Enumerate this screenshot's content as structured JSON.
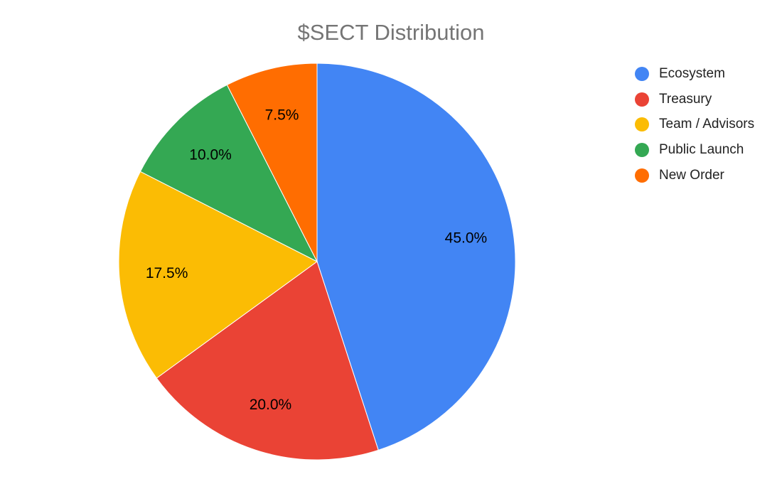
{
  "chart_data": {
    "type": "pie",
    "title": "$SECT Distribution",
    "legend_position": "right",
    "slices": [
      {
        "label": "Ecosystem",
        "value": 45.0,
        "display": "45.0%",
        "color": "#4285f4"
      },
      {
        "label": "Treasury",
        "value": 20.0,
        "display": "20.0%",
        "color": "#ea4335"
      },
      {
        "label": "Team / Advisors",
        "value": 17.5,
        "display": "17.5%",
        "color": "#fbbc04"
      },
      {
        "label": "Public Launch",
        "value": 10.0,
        "display": "10.0%",
        "color": "#34a853"
      },
      {
        "label": "New Order",
        "value": 7.5,
        "display": "7.5%",
        "color": "#ff6d01"
      }
    ]
  }
}
